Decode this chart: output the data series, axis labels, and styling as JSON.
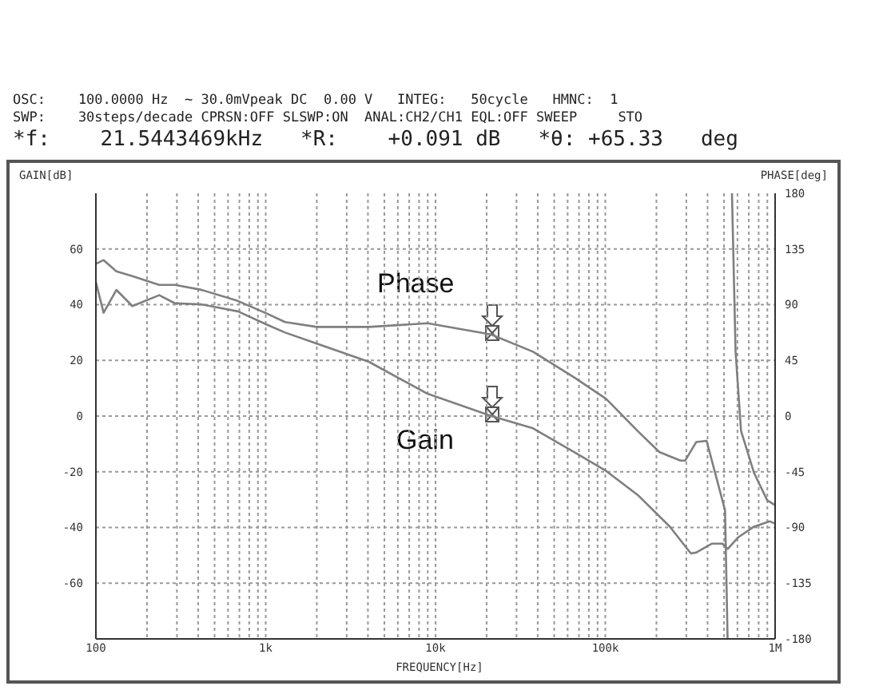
{
  "chart_data": {
    "type": "line",
    "xlabel": "FREQUENCY[Hz]",
    "ylabel": "GAIN[dB]",
    "y2label": "PHASE[deg]",
    "annotations": [
      "OSC:    100.0000 Hz  ~ 30.0mVpeak DC  0.00 V   INTEG:   50cycle   HMNC:  1",
      "SWP:    30steps/decade CPRSN:OFF SLSWP:ON  ANAL:CH2/CH1 EQL:OFF SWEEP     STO",
      "*f:    21.5443469kHz   *R:    +0.091 dB   *θ: +65.33   deg"
    ],
    "log": "x",
    "grid": true,
    "marker": "none",
    "line_style": "solid",
    "xlim": [
      100,
      1000000
    ],
    "xticks": [
      {
        "value": 100,
        "label": "100"
      },
      {
        "value": 200,
        "label": null
      },
      {
        "value": 300,
        "label": null
      },
      {
        "value": 400,
        "label": null
      },
      {
        "value": 500,
        "label": null
      },
      {
        "value": 600,
        "label": null
      },
      {
        "value": 700,
        "label": null
      },
      {
        "value": 800,
        "label": null
      },
      {
        "value": 900,
        "label": null
      },
      {
        "value": 1000,
        "label": "1k"
      },
      {
        "value": 2000,
        "label": null
      },
      {
        "value": 3000,
        "label": null
      },
      {
        "value": 4000,
        "label": null
      },
      {
        "value": 5000,
        "label": null
      },
      {
        "value": 6000,
        "label": null
      },
      {
        "value": 7000,
        "label": null
      },
      {
        "value": 8000,
        "label": null
      },
      {
        "value": 9000,
        "label": null
      },
      {
        "value": 10000,
        "label": "10k"
      },
      {
        "value": 20000,
        "label": null
      },
      {
        "value": 30000,
        "label": null
      },
      {
        "value": 40000,
        "label": null
      },
      {
        "value": 50000,
        "label": null
      },
      {
        "value": 60000,
        "label": null
      },
      {
        "value": 70000,
        "label": null
      },
      {
        "value": 80000,
        "label": null
      },
      {
        "value": 90000,
        "label": null
      },
      {
        "value": 100000,
        "label": "100k"
      },
      {
        "value": 200000,
        "label": null
      },
      {
        "value": 300000,
        "label": null
      },
      {
        "value": 400000,
        "label": null
      },
      {
        "value": 500000,
        "label": null
      },
      {
        "value": 600000,
        "label": null
      },
      {
        "value": 700000,
        "label": null
      },
      {
        "value": 800000,
        "label": null
      },
      {
        "value": 900000,
        "label": null
      },
      {
        "value": 1000000,
        "label": "1M"
      }
    ],
    "ylim": [
      -80,
      80
    ],
    "yticks": [
      -60,
      -40,
      -20,
      0,
      20,
      40,
      60
    ],
    "y2lim": [
      -180,
      180
    ],
    "y2ticks": [
      -180,
      -135,
      -90,
      -45,
      0,
      45,
      90,
      135,
      180
    ],
    "series": [
      {
        "name": "Phase",
        "color": "#7f7f7f",
        "axis": "y2",
        "x": [
          100,
          111,
          132,
          164,
          236,
          292,
          418,
          686,
          1010,
          1300,
          2000,
          4050,
          8980,
          21200,
          37500,
          65900,
          101000,
          155000,
          208000,
          277000,
          295000,
          343000,
          395000,
          507000,
          525000,
          540000,
          557000,
          585000,
          630000,
          752000,
          898000,
          1000000
        ],
        "values": [
          123,
          126,
          117,
          113,
          106,
          106,
          102,
          93,
          83,
          76,
          72,
          72,
          75,
          66,
          52,
          31,
          14,
          -12,
          -29,
          -36,
          -36,
          -21,
          -20,
          -76,
          -180,
          null,
          180,
          52,
          -12,
          -46,
          -68,
          -72
        ]
      },
      {
        "name": "Gain",
        "color": "#7f7f7f",
        "x": [
          100,
          111,
          132,
          164,
          236,
          292,
          418,
          686,
          1010,
          1300,
          2000,
          4050,
          8980,
          21200,
          37500,
          65900,
          101000,
          155000,
          240000,
          319000,
          343000,
          425000,
          490000,
          526000,
          607000,
          752000,
          930000,
          1000000
        ],
        "values": [
          48.1,
          37.1,
          45.3,
          39.5,
          43.4,
          40.5,
          40.1,
          37.6,
          32.9,
          30,
          26,
          19.5,
          8,
          0.1,
          -4.4,
          -13,
          -19.7,
          -28.3,
          -39.7,
          -49.3,
          -49,
          -45.8,
          -45.8,
          -47.7,
          -43.5,
          -39.7,
          -37.8,
          -38.6
        ]
      }
    ]
  }
}
